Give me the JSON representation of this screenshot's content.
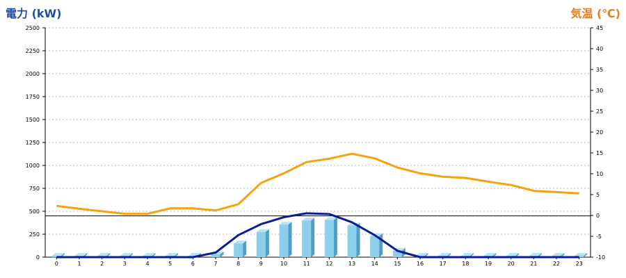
{
  "title_left": "電力 (kW)",
  "title_right": "気温 (℃)",
  "chart_data": {
    "type": "bar",
    "x": [
      0,
      1,
      2,
      3,
      4,
      5,
      6,
      7,
      8,
      9,
      10,
      11,
      12,
      13,
      14,
      15,
      16,
      17,
      18,
      19,
      20,
      21,
      22,
      23
    ],
    "y_left_ticks": [
      "2500",
      "2250",
      "2000",
      "1750",
      "1500",
      "1250",
      "1000",
      "750",
      "500",
      "250",
      "0"
    ],
    "y_right_ticks": [
      "45",
      "40",
      "35",
      "30",
      "25",
      "20",
      "15",
      "10",
      "5",
      "0",
      "-5",
      "-10"
    ],
    "ylim_left": [
      0,
      2500
    ],
    "ylim_right": [
      -10,
      45
    ],
    "grid": true,
    "reference_line_left": 450,
    "series": [
      {
        "kind": "bar",
        "axis": "left",
        "color": "#8ccfec",
        "values": [
          15,
          15,
          15,
          15,
          15,
          15,
          15,
          30,
          150,
          275,
          355,
          400,
          405,
          345,
          230,
          70,
          15,
          15,
          15,
          15,
          15,
          15,
          15,
          15
        ]
      },
      {
        "kind": "line",
        "axis": "left",
        "color": "#0b1e8f",
        "values": [
          0,
          0,
          0,
          0,
          0,
          0,
          0,
          50,
          240,
          360,
          435,
          478,
          470,
          380,
          240,
          70,
          0,
          0,
          0,
          0,
          0,
          0,
          0,
          0
        ]
      },
      {
        "kind": "line",
        "axis": "right",
        "color": "#f5a20f",
        "values": [
          2.3,
          1.6,
          1.0,
          0.4,
          0.4,
          1.7,
          1.7,
          1.2,
          2.7,
          7.8,
          10.1,
          12.8,
          13.6,
          14.8,
          13.7,
          11.5,
          10.1,
          9.3,
          9.0,
          8.1,
          7.3,
          5.9,
          5.6,
          5.3
        ]
      }
    ]
  }
}
